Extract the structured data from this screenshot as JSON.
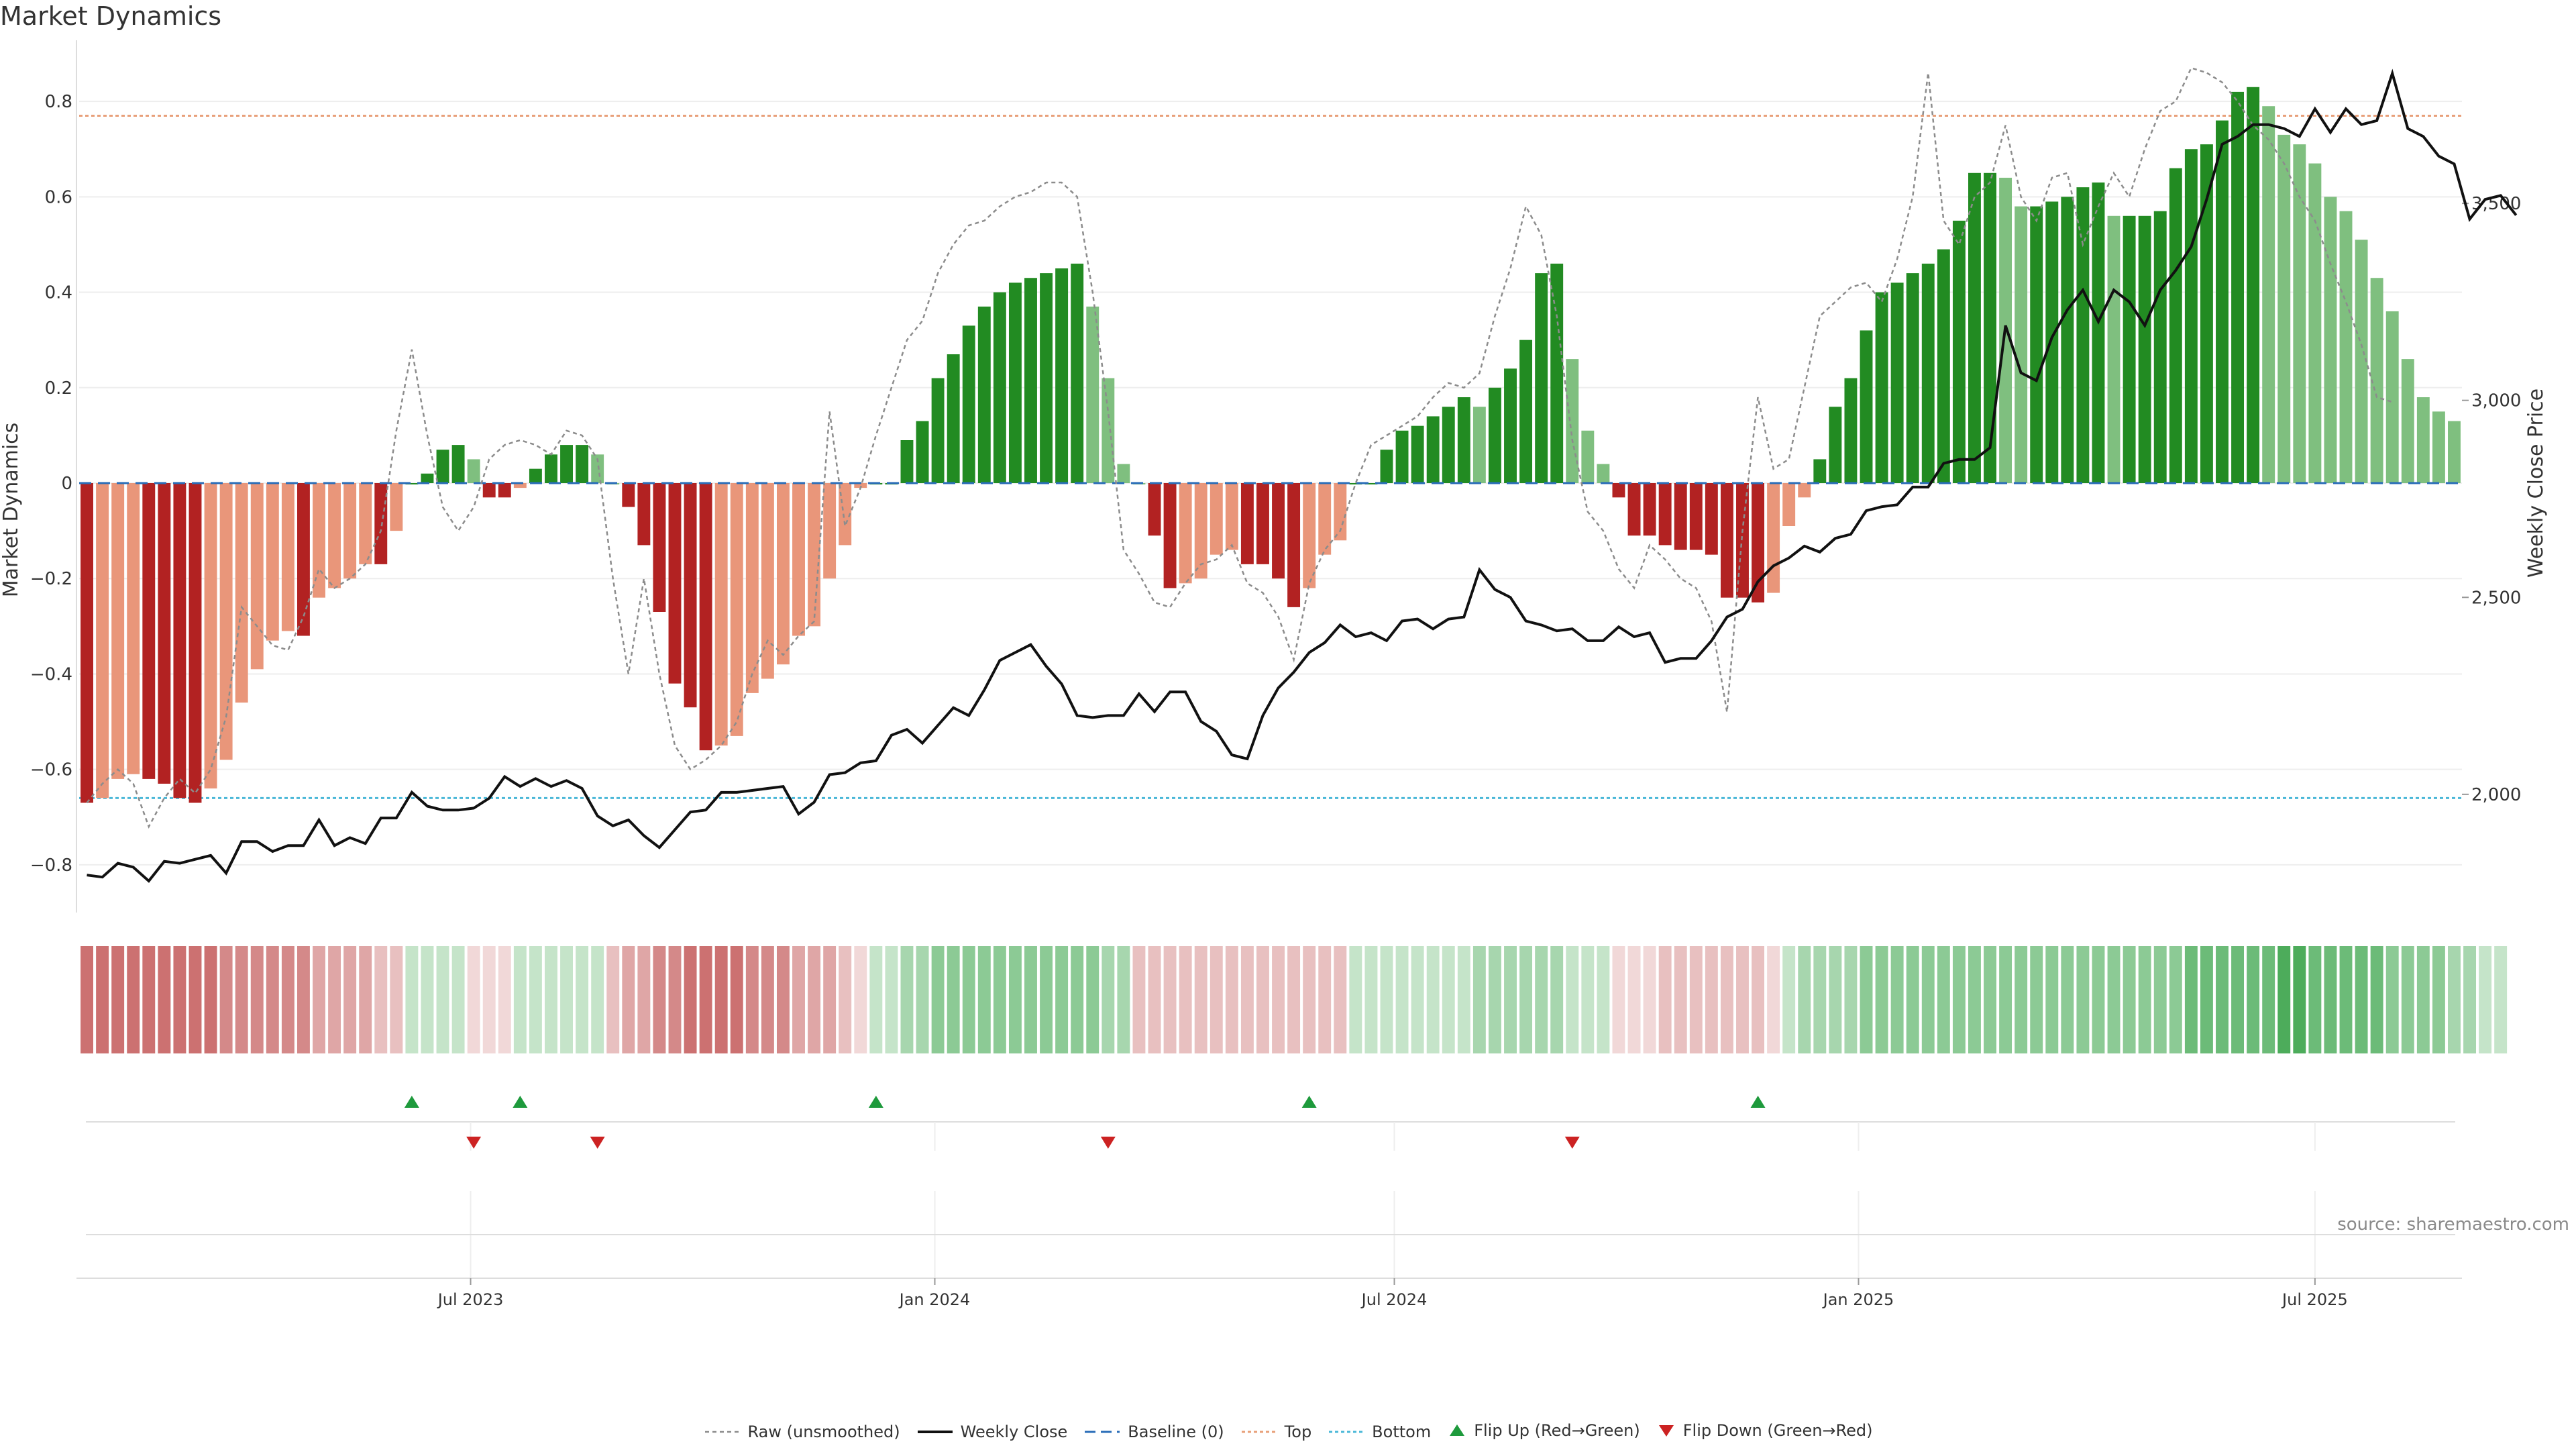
{
  "title": "Market Dynamics",
  "source": "source: sharemaestro.com",
  "colors": {
    "green_strong": "#228b22",
    "green_light": "#7fbf7f",
    "red_strong": "#b22222",
    "red_light": "#e9967a",
    "raw": "#8c8c8c",
    "close": "#111111",
    "baseline": "#2a6db8",
    "top": "#e8a07a",
    "bottom": "#4bb8d8",
    "flip_up": "#1e9a3c",
    "flip_down": "#cc2222",
    "grid": "#eeeeee"
  },
  "legend": [
    {
      "key": "raw",
      "label": "Raw (unsmoothed)"
    },
    {
      "key": "close",
      "label": "Weekly Close"
    },
    {
      "key": "baseline",
      "label": "Baseline (0)"
    },
    {
      "key": "top",
      "label": "Top"
    },
    {
      "key": "bottom",
      "label": "Bottom"
    },
    {
      "key": "flip_up",
      "label": "Flip Up (Red→Green)"
    },
    {
      "key": "flip_down",
      "label": "Flip Down (Green→Red)"
    }
  ],
  "chart_data": {
    "type": "bar",
    "title": "Market Dynamics",
    "ylabel": "Market Dynamics",
    "y2label": "Weekly Close Price",
    "ylim": [
      -0.9,
      0.9
    ],
    "yticks": [
      -0.8,
      -0.6,
      -0.4,
      -0.2,
      0,
      0.2,
      0.4,
      0.6,
      0.8
    ],
    "ytick_labels": [
      "−0.8",
      "−0.6",
      "−0.4",
      "−0.2",
      "0",
      "0.2",
      "0.4",
      "0.6",
      "0.8"
    ],
    "y2lim": [
      1700,
      3880
    ],
    "y2ticks": [
      2000,
      2500,
      3000,
      3500
    ],
    "y2tick_labels": [
      "2,000",
      "2,500",
      "3,000",
      "3,500"
    ],
    "x_date_ticks": [
      "Jul 2023",
      "Jan 2024",
      "Jul 2024",
      "Jan 2025",
      "Jul 2025"
    ],
    "x_tick_index": [
      24.8,
      54.8,
      84.5,
      114.5,
      144
    ],
    "top_threshold": 0.77,
    "bottom_threshold": -0.66,
    "baseline": 0,
    "smoothed": [
      -0.67,
      -0.66,
      -0.62,
      -0.61,
      -0.62,
      -0.63,
      -0.66,
      -0.67,
      -0.64,
      -0.58,
      -0.46,
      -0.39,
      -0.33,
      -0.31,
      -0.32,
      -0.24,
      -0.22,
      -0.2,
      -0.17,
      -0.17,
      -0.1,
      0,
      0.02,
      0.07,
      0.08,
      0.05,
      -0.03,
      -0.03,
      -0.01,
      0.03,
      0.06,
      0.08,
      0.08,
      0.06,
      0,
      -0.05,
      -0.13,
      -0.27,
      -0.42,
      -0.47,
      -0.56,
      -0.55,
      -0.53,
      -0.44,
      -0.41,
      -0.38,
      -0.32,
      -0.3,
      -0.2,
      -0.13,
      -0.01,
      0,
      0,
      0.09,
      0.13,
      0.22,
      0.27,
      0.33,
      0.37,
      0.4,
      0.42,
      0.43,
      0.44,
      0.45,
      0.46,
      0.37,
      0.22,
      0.04,
      0,
      -0.11,
      -0.22,
      -0.21,
      -0.2,
      -0.15,
      -0.14,
      -0.17,
      -0.17,
      -0.2,
      -0.26,
      -0.22,
      -0.15,
      -0.12,
      0,
      0,
      0.07,
      0.11,
      0.12,
      0.14,
      0.16,
      0.18,
      0.16,
      0.2,
      0.24,
      0.3,
      0.44,
      0.46,
      0.26,
      0.11,
      0.04,
      -0.03,
      -0.11,
      -0.11,
      -0.13,
      -0.14,
      -0.14,
      -0.15,
      -0.24,
      -0.24,
      -0.25,
      -0.23,
      -0.09,
      -0.03,
      0.05,
      0.16,
      0.22,
      0.32,
      0.4,
      0.42,
      0.44,
      0.46,
      0.49,
      0.55,
      0.65,
      0.65,
      0.64,
      0.58,
      0.58,
      0.59,
      0.6,
      0.62,
      0.63,
      0.56,
      0.56,
      0.56,
      0.57,
      0.66,
      0.7,
      0.71,
      0.76,
      0.82,
      0.83,
      0.79,
      0.73,
      0.71,
      0.67,
      0.6,
      0.57,
      0.51,
      0.43,
      0.36,
      0.26,
      0.18,
      0.15,
      0.13
    ],
    "raw": [
      -0.67,
      -0.63,
      -0.6,
      -0.63,
      -0.72,
      -0.66,
      -0.62,
      -0.65,
      -0.6,
      -0.49,
      -0.26,
      -0.3,
      -0.34,
      -0.35,
      -0.28,
      -0.18,
      -0.22,
      -0.2,
      -0.17,
      -0.1,
      0.11,
      0.28,
      0.1,
      -0.05,
      -0.1,
      -0.05,
      0.05,
      0.08,
      0.09,
      0.08,
      0.06,
      0.11,
      0.1,
      0.05,
      -0.2,
      -0.4,
      -0.2,
      -0.4,
      -0.55,
      -0.6,
      -0.58,
      -0.55,
      -0.5,
      -0.4,
      -0.33,
      -0.36,
      -0.32,
      -0.29,
      0.15,
      -0.09,
      -0.01,
      0.1,
      0.2,
      0.3,
      0.34,
      0.44,
      0.5,
      0.54,
      0.55,
      0.58,
      0.6,
      0.61,
      0.63,
      0.63,
      0.6,
      0.4,
      0.15,
      -0.14,
      -0.19,
      -0.25,
      -0.26,
      -0.21,
      -0.17,
      -0.16,
      -0.13,
      -0.21,
      -0.23,
      -0.28,
      -0.37,
      -0.21,
      -0.14,
      -0.1,
      0,
      0.08,
      0.1,
      0.12,
      0.14,
      0.18,
      0.21,
      0.2,
      0.23,
      0.35,
      0.45,
      0.58,
      0.52,
      0.35,
      0.09,
      -0.06,
      -0.1,
      -0.18,
      -0.22,
      -0.13,
      -0.16,
      -0.2,
      -0.22,
      -0.29,
      -0.48,
      -0.1,
      0.18,
      0.03,
      0.05,
      0.2,
      0.35,
      0.38,
      0.41,
      0.42,
      0.38,
      0.47,
      0.6,
      0.86,
      0.55,
      0.5,
      0.6,
      0.63,
      0.75,
      0.6,
      0.55,
      0.64,
      0.65,
      0.5,
      0.58,
      0.65,
      0.6,
      0.7,
      0.78,
      0.8,
      0.87,
      0.86,
      0.84,
      0.8,
      0.75,
      0.72,
      0.67,
      0.6,
      0.55,
      0.46,
      0.38,
      0.29,
      0.18,
      0.17
    ],
    "weekly_close": [
      1795,
      1790,
      1825,
      1815,
      1780,
      1830,
      1825,
      1835,
      1845,
      1800,
      1880,
      1880,
      1855,
      1870,
      1870,
      1935,
      1870,
      1890,
      1875,
      1940,
      1940,
      2005,
      1970,
      1960,
      1960,
      1965,
      1990,
      2045,
      2020,
      2040,
      2020,
      2035,
      2015,
      1945,
      1920,
      1935,
      1895,
      1865,
      1910,
      1955,
      1960,
      2005,
      2005,
      2010,
      2015,
      2020,
      1950,
      1980,
      2050,
      2055,
      2080,
      2085,
      2150,
      2165,
      2130,
      2175,
      2220,
      2200,
      2265,
      2340,
      2360,
      2380,
      2325,
      2280,
      2200,
      2195,
      2200,
      2200,
      2255,
      2210,
      2260,
      2260,
      2185,
      2160,
      2100,
      2090,
      2200,
      2270,
      2310,
      2360,
      2385,
      2430,
      2400,
      2410,
      2390,
      2440,
      2445,
      2420,
      2445,
      2450,
      2570,
      2520,
      2500,
      2440,
      2430,
      2415,
      2420,
      2390,
      2390,
      2425,
      2400,
      2410,
      2335,
      2345,
      2345,
      2390,
      2450,
      2470,
      2540,
      2580,
      2600,
      2630,
      2615,
      2650,
      2660,
      2720,
      2730,
      2735,
      2780,
      2780,
      2840,
      2850,
      2850,
      2880,
      3190,
      3070,
      3050,
      3160,
      3230,
      3280,
      3200,
      3280,
      3250,
      3190,
      3280,
      3330,
      3390,
      3510,
      3650,
      3670,
      3700,
      3700,
      3690,
      3670,
      3740,
      3680,
      3740,
      3700,
      3710,
      3830,
      3690,
      3670,
      3620,
      3600,
      3460,
      3510,
      3520,
      3470
    ],
    "heat_strip": [
      -5,
      -5,
      -5,
      -5,
      -5,
      -5,
      -5,
      -5,
      -5,
      -4,
      -4,
      -4,
      -4,
      -4,
      -4,
      -3,
      -3,
      -3,
      -3,
      -2,
      -2,
      1,
      1,
      1,
      1,
      -1,
      -1,
      -1,
      1,
      1,
      1,
      1,
      1,
      1,
      -2,
      -3,
      -3,
      -4,
      -4,
      -5,
      -5,
      -5,
      -5,
      -4,
      -4,
      -4,
      -3,
      -3,
      -3,
      -2,
      -1,
      1,
      1,
      2,
      2,
      3,
      3,
      3,
      3,
      3,
      3,
      3,
      3,
      3,
      3,
      3,
      2,
      2,
      -2,
      -2,
      -2,
      -2,
      -2,
      -2,
      -2,
      -2,
      -2,
      -2,
      -2,
      -2,
      -2,
      -2,
      1,
      1,
      1,
      1,
      1,
      1,
      1,
      1,
      2,
      2,
      2,
      2,
      2,
      2,
      1,
      1,
      1,
      -1,
      -1,
      -1,
      -2,
      -2,
      -2,
      -2,
      -2,
      -2,
      -2,
      -1,
      1,
      2,
      2,
      2,
      2,
      3,
      3,
      3,
      3,
      3,
      3,
      3,
      3,
      3,
      3,
      3,
      3,
      3,
      3,
      3,
      3,
      3,
      3,
      3,
      3,
      3,
      4,
      4,
      4,
      4,
      4,
      4,
      5,
      5,
      4,
      4,
      4,
      4,
      4,
      3,
      3,
      3,
      3,
      2,
      2,
      1,
      1
    ],
    "flip_up": [
      21,
      28,
      51,
      79,
      108
    ],
    "flip_down": [
      25,
      33,
      66,
      96
    ]
  }
}
